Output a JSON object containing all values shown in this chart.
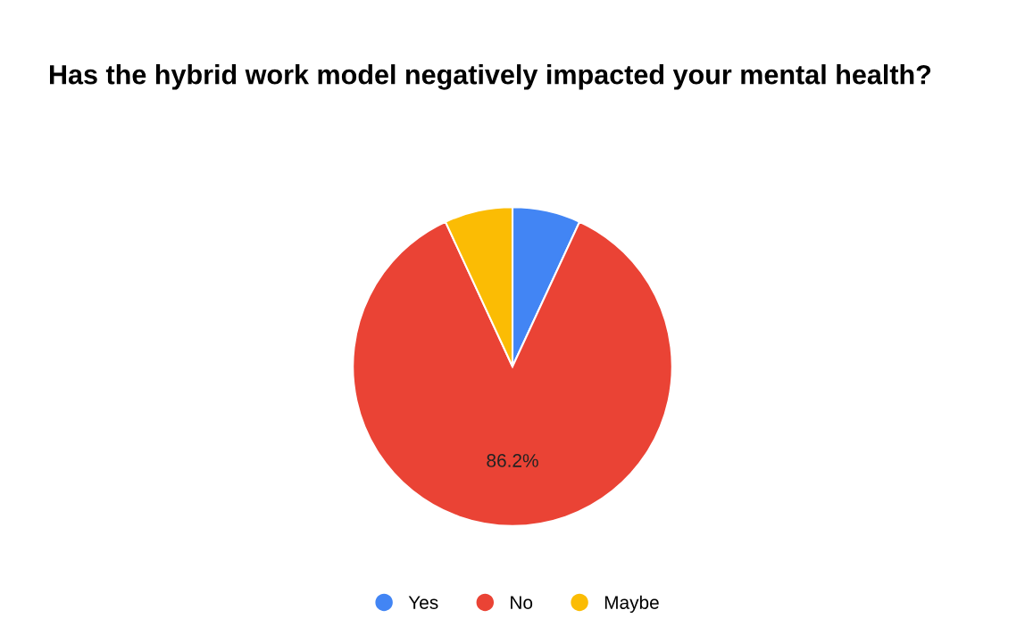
{
  "chart_data": {
    "type": "pie",
    "title": "Has the hybrid work model negatively impacted your mental health?",
    "categories": [
      "Yes",
      "No",
      "Maybe"
    ],
    "values": [
      6.9,
      86.2,
      6.9
    ],
    "colors": [
      "#4285f4",
      "#ea4335",
      "#fbbc04"
    ],
    "value_labels": [
      null,
      "86.2%",
      null
    ],
    "legend": "bottom"
  }
}
